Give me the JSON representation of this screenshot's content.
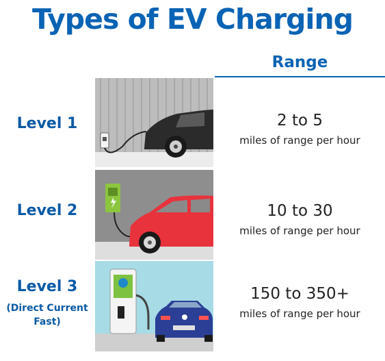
{
  "title": "Types of EV Charging",
  "range_header": "Range",
  "levels": [
    {
      "name": "Level 1",
      "subtitle": "",
      "rate": "2 to 5",
      "unit": "miles of range per hour"
    },
    {
      "name": "Level 2",
      "subtitle": "",
      "rate": "10 to 30",
      "unit": "miles of range per hour"
    },
    {
      "name": "Level 3",
      "subtitle": "(Direct Current Fast)",
      "rate": "150 to 350+",
      "unit": "miles of range per hour"
    }
  ],
  "colors": {
    "brand_blue": "#0a63b4",
    "level1_car": "#2b2b2b",
    "level2_car": "#e8323c",
    "level3_car": "#2a3f95",
    "level3_sky": "#a7dbe6"
  }
}
